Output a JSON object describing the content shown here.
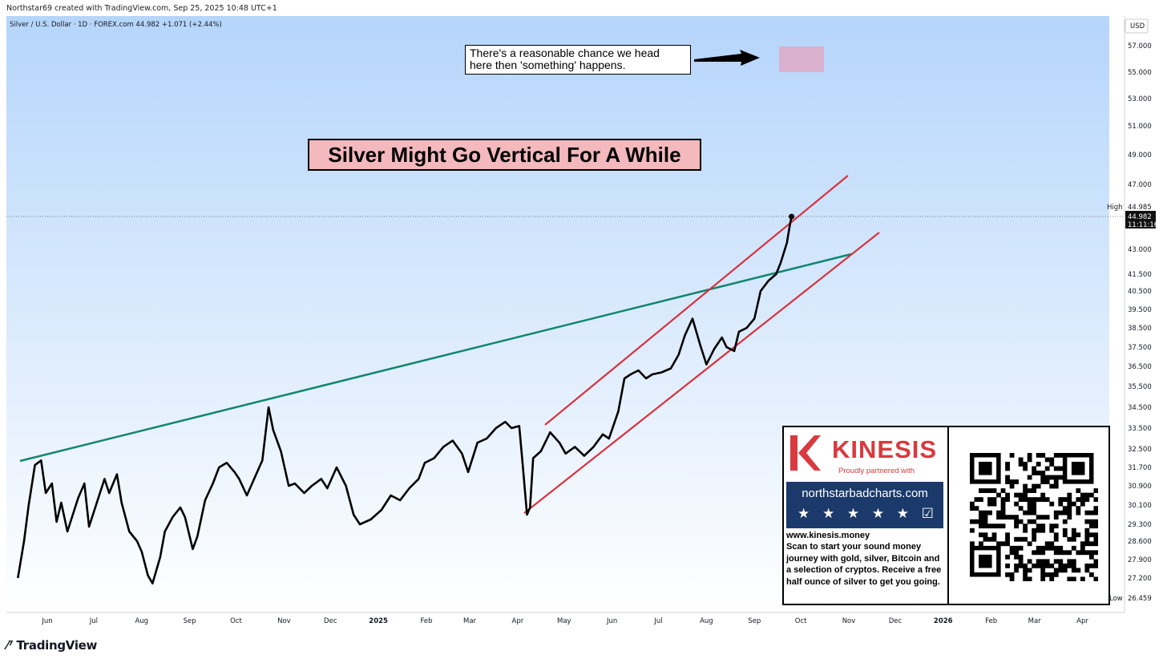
{
  "header": {
    "attribution": "Northstar69 created with TradingView.com, Sep 25, 2025 10:48 UTC+1",
    "symbol_line": "Silver / U.S. Dollar · 1D · FOREX.com  44.982  +1.071 (+2.44%)"
  },
  "chart_data": {
    "type": "line",
    "symbol": "Silver / U.S. Dollar",
    "interval": "1D",
    "exchange": "FOREX.com",
    "last": 44.982,
    "change": 1.071,
    "change_pct": 2.44,
    "currency_label": "USD",
    "y_tick_labels": [
      "57.000",
      "55.000",
      "53.000",
      "51.000",
      "49.000",
      "47.000",
      "43.000",
      "41.500",
      "40.500",
      "39.500",
      "38.500",
      "37.500",
      "36.500",
      "35.500",
      "34.500",
      "33.500",
      "32.500",
      "31.700",
      "30.900",
      "30.100",
      "29.300",
      "28.600",
      "27.900",
      "27.200"
    ],
    "x_tick_labels": [
      "Jun",
      "Jul",
      "Aug",
      "Sep",
      "Oct",
      "Nov",
      "Dec",
      "2025",
      "Feb",
      "Mar",
      "Apr",
      "May",
      "Jun",
      "Jul",
      "Aug",
      "Sep",
      "Oct",
      "Nov",
      "Dec",
      "2026",
      "Feb",
      "Mar",
      "Apr"
    ],
    "high_label": "High",
    "high_value": "44.985",
    "low_label": "Low",
    "low_value": "26.459",
    "price_badge": "44.982",
    "countdown": "11:11:16",
    "x": [
      "2024-05-13",
      "2024-05-17",
      "2024-05-20",
      "2024-05-24",
      "2024-05-28",
      "2024-05-31",
      "2024-06-04",
      "2024-06-07",
      "2024-06-10",
      "2024-06-14",
      "2024-06-18",
      "2024-06-21",
      "2024-06-25",
      "2024-06-28",
      "2024-07-03",
      "2024-07-08",
      "2024-07-11",
      "2024-07-16",
      "2024-07-19",
      "2024-07-24",
      "2024-07-29",
      "2024-08-01",
      "2024-08-05",
      "2024-08-08",
      "2024-08-13",
      "2024-08-16",
      "2024-08-21",
      "2024-08-26",
      "2024-08-29",
      "2024-09-03",
      "2024-09-06",
      "2024-09-11",
      "2024-09-16",
      "2024-09-20",
      "2024-09-25",
      "2024-09-30",
      "2024-10-03",
      "2024-10-08",
      "2024-10-14",
      "2024-10-18",
      "2024-10-22",
      "2024-10-25",
      "2024-10-30",
      "2024-11-04",
      "2024-11-08",
      "2024-11-14",
      "2024-11-19",
      "2024-11-25",
      "2024-11-29",
      "2024-12-05",
      "2024-12-11",
      "2024-12-16",
      "2024-12-20",
      "2024-12-27",
      "2025-01-03",
      "2025-01-09",
      "2025-01-15",
      "2025-01-21",
      "2025-01-27",
      "2025-01-31",
      "2025-02-06",
      "2025-02-12",
      "2025-02-18",
      "2025-02-24",
      "2025-02-28",
      "2025-03-06",
      "2025-03-12",
      "2025-03-18",
      "2025-03-24",
      "2025-03-28",
      "2025-04-02",
      "2025-04-04",
      "2025-04-07",
      "2025-04-09",
      "2025-04-11",
      "2025-04-16",
      "2025-04-22",
      "2025-04-28",
      "2025-05-02",
      "2025-05-08",
      "2025-05-14",
      "2025-05-20",
      "2025-05-26",
      "2025-05-30",
      "2025-06-05",
      "2025-06-09",
      "2025-06-13",
      "2025-06-18",
      "2025-06-23",
      "2025-06-27",
      "2025-07-03",
      "2025-07-09",
      "2025-07-14",
      "2025-07-18",
      "2025-07-23",
      "2025-07-28",
      "2025-08-01",
      "2025-08-06",
      "2025-08-11",
      "2025-08-14",
      "2025-08-19",
      "2025-08-22",
      "2025-08-27",
      "2025-09-01",
      "2025-09-05",
      "2025-09-10",
      "2025-09-15",
      "2025-09-18",
      "2025-09-22",
      "2025-09-24",
      "2025-09-25"
    ],
    "y": [
      27.2,
      28.6,
      30.1,
      31.8,
      32.0,
      30.6,
      31.0,
      29.4,
      30.2,
      29.0,
      29.8,
      30.4,
      31.0,
      29.2,
      30.2,
      31.2,
      30.6,
      31.4,
      30.2,
      29.0,
      28.6,
      28.2,
      27.3,
      27.0,
      28.0,
      29.0,
      29.6,
      30.0,
      29.6,
      28.3,
      28.8,
      30.3,
      31.0,
      31.7,
      31.9,
      31.5,
      31.2,
      30.5,
      31.4,
      32.0,
      34.5,
      33.4,
      32.4,
      30.9,
      31.0,
      30.6,
      30.9,
      31.2,
      30.8,
      31.7,
      30.9,
      29.7,
      29.3,
      29.5,
      29.9,
      30.5,
      30.3,
      30.8,
      31.2,
      31.9,
      32.1,
      32.6,
      32.9,
      32.3,
      31.5,
      32.8,
      33.0,
      33.5,
      33.8,
      33.5,
      33.6,
      32.0,
      29.7,
      30.0,
      32.1,
      32.4,
      33.3,
      32.8,
      32.3,
      32.6,
      32.2,
      32.6,
      33.2,
      33.0,
      34.3,
      35.9,
      36.1,
      36.3,
      35.9,
      36.1,
      36.2,
      36.4,
      37.1,
      38.1,
      39.0,
      37.6,
      36.6,
      37.4,
      38.0,
      37.5,
      37.3,
      38.3,
      38.5,
      39.0,
      40.5,
      41.1,
      41.5,
      42.2,
      43.4,
      44.5,
      44.982
    ]
  },
  "annotations": {
    "callout_line1": "There's a reasonable chance we head",
    "callout_line2": "here then 'something' happens.",
    "title": "Silver Might Go Vertical For A While",
    "trendline_color": "#12866e",
    "channel_color": "#d6333f",
    "target_zone_color": "#d9b1cf"
  },
  "ad": {
    "brand": "KINESIS",
    "tagline": "Proudly partnered with",
    "site_banner": "northstarbadcharts.com",
    "url": "www.kinesis.money",
    "body": "Scan to start your sound money journey with gold, silver, Bitcoin and a selection of cryptos. Receive a free half ounce of silver to get you going.",
    "brand_color": "#d93a3f",
    "banner_color": "#1b3a6b"
  },
  "footer": {
    "logo_text": "TradingView"
  }
}
